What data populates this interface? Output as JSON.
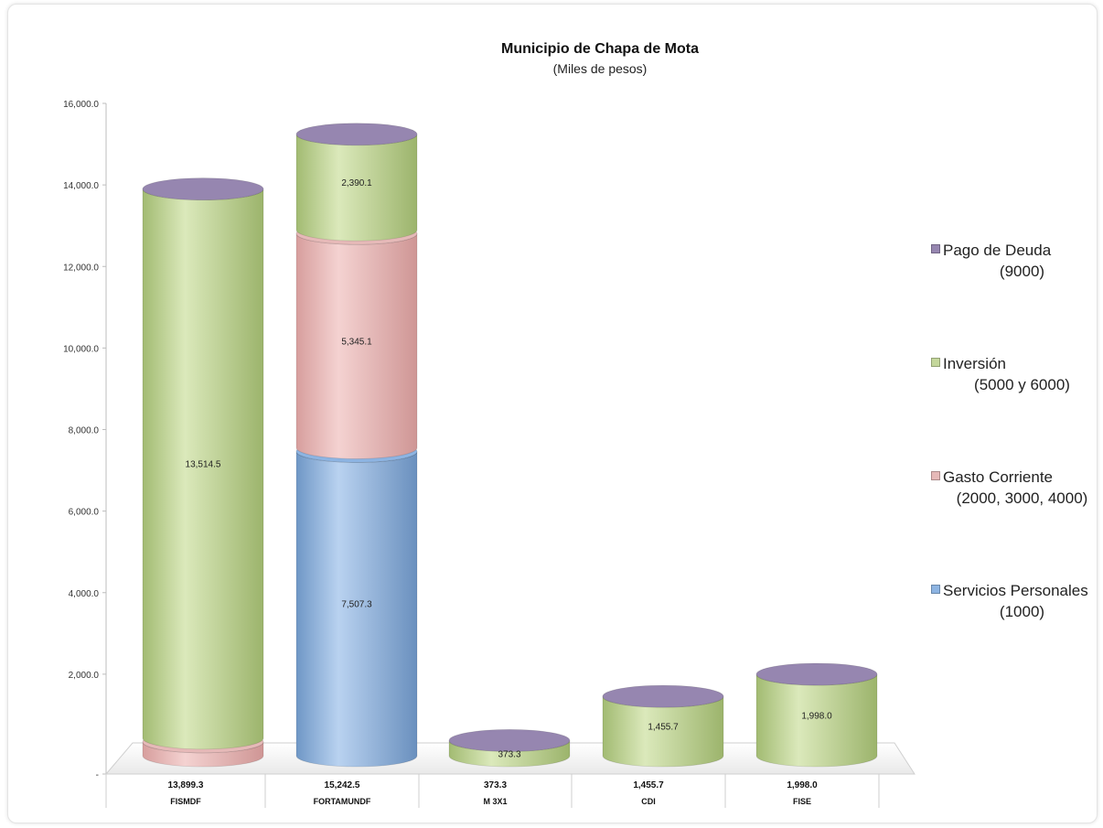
{
  "chart_data": {
    "type": "bar",
    "stacked": true,
    "title": "Municipio de Chapa de Mota",
    "subtitle": "(Miles de pesos)",
    "ylim": [
      0,
      16000
    ],
    "yticks": [
      "-",
      "2,000.0",
      "4,000.0",
      "6,000.0",
      "8,000.0",
      "10,000.0",
      "12,000.0",
      "14,000.0",
      "16,000.0"
    ],
    "categories": [
      "FISMDF",
      "FORTAMUNDF",
      "M 3X1",
      "CDI",
      "FISE"
    ],
    "totals": [
      "13,899.3",
      "15,242.5",
      "373.3",
      "1,455.7",
      "1,998.0"
    ],
    "legend_position": "right",
    "series": [
      {
        "key": "servicios",
        "name": "Servicios Personales",
        "code": "(1000)",
        "color": "#8db4e2",
        "values": [
          0,
          7507.3,
          0,
          0,
          0
        ],
        "labels": [
          "",
          "7,507.3",
          "",
          "",
          ""
        ]
      },
      {
        "key": "gasto",
        "name": "Gasto Corriente",
        "code": "(2000, 3000, 4000)",
        "color": "#e6b9b8",
        "values": [
          384.8,
          5345.1,
          0,
          0,
          0
        ],
        "labels": [
          "",
          "5,345.1",
          "",
          "",
          ""
        ]
      },
      {
        "key": "inversion",
        "name": "Inversión",
        "code": "(5000 y 6000)",
        "color": "#c4d79b",
        "values": [
          13514.5,
          2390.1,
          373.3,
          1455.7,
          1998.0
        ],
        "labels": [
          "13,514.5",
          "2,390.1",
          "373.3",
          "1,455.7",
          "1,998.0"
        ]
      },
      {
        "key": "deuda",
        "name": "Pago de Deuda",
        "code": "(9000)",
        "color": "#9686b0",
        "values": [
          0,
          0,
          0,
          0,
          0
        ],
        "labels": [
          "",
          "",
          "",
          "",
          ""
        ]
      }
    ]
  }
}
